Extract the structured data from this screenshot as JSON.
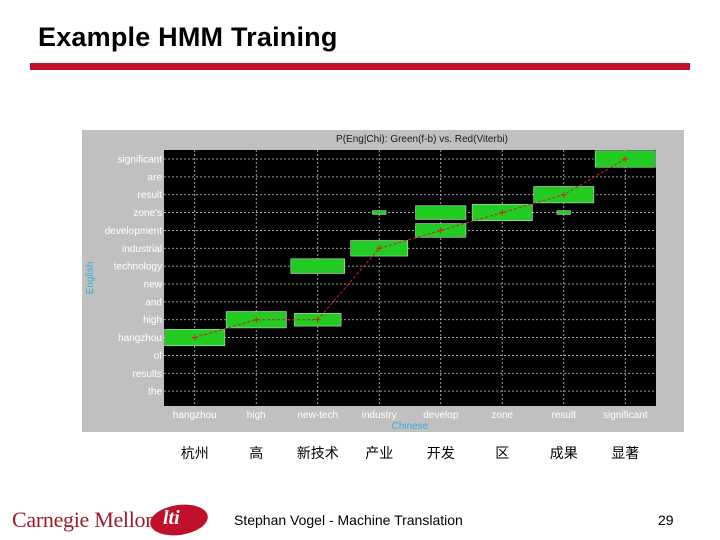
{
  "slide": {
    "title": "Example HMM Training",
    "footer_text": "Stephan Vogel - Machine Translation",
    "page_number": "29",
    "logo_text": "Carnegie Mellon",
    "logo_badge": "lti",
    "accent_color": "#c0102a"
  },
  "chart_data": {
    "type": "alignment-matrix",
    "title": "P(Eng|Chi): Green(f-b) vs. Red(Viterbi)",
    "xlabel": "Chinese",
    "ylabel": "English",
    "x_ticks": [
      "hangzhou",
      "high",
      "new-tech",
      "industry",
      "develop",
      "zone",
      "result",
      "significant"
    ],
    "y_ticks": [
      "significant",
      "are",
      "result",
      "zone's",
      "development",
      "industrial",
      "technology",
      "new",
      "and",
      "high",
      "hangzhou",
      "of",
      "results",
      "the"
    ],
    "chinese_labels": [
      "杭州",
      "高",
      "新技术",
      "产业",
      "开发",
      "区",
      "成果",
      "显著"
    ],
    "green_fb_posteriors": [
      {
        "x": "hangzhou",
        "y": "hangzhou",
        "value": 1.0
      },
      {
        "x": "high",
        "y": "high",
        "value": 1.0
      },
      {
        "x": "new-tech",
        "y": "high",
        "value": 0.6
      },
      {
        "x": "new-tech",
        "y": "technology",
        "value": 0.8
      },
      {
        "x": "industry",
        "y": "industrial",
        "value": 0.9
      },
      {
        "x": "industry",
        "y": "zone's",
        "value": 0.05
      },
      {
        "x": "develop",
        "y": "zone's",
        "value": 0.7
      },
      {
        "x": "develop",
        "y": "development",
        "value": 0.7
      },
      {
        "x": "zone",
        "y": "zone's",
        "value": 1.0
      },
      {
        "x": "result",
        "y": "result",
        "value": 1.0
      },
      {
        "x": "result",
        "y": "zone's",
        "value": 0.05
      },
      {
        "x": "significant",
        "y": "significant",
        "value": 1.0
      }
    ],
    "red_viterbi_path": [
      {
        "x": "hangzhou",
        "y": "hangzhou"
      },
      {
        "x": "high",
        "y": "high"
      },
      {
        "x": "new-tech",
        "y": "high"
      },
      {
        "x": "industry",
        "y": "industrial"
      },
      {
        "x": "develop",
        "y": "development"
      },
      {
        "x": "zone",
        "y": "zone's"
      },
      {
        "x": "result",
        "y": "result"
      },
      {
        "x": "significant",
        "y": "significant"
      }
    ],
    "colors": {
      "background": "#000000",
      "frame": "#c0c0c0",
      "box": "#22cc22",
      "path": "#cc2222",
      "tick_text": "#ffffff",
      "axis_label": "#33aadd",
      "grid": "#c8c8c8"
    }
  }
}
